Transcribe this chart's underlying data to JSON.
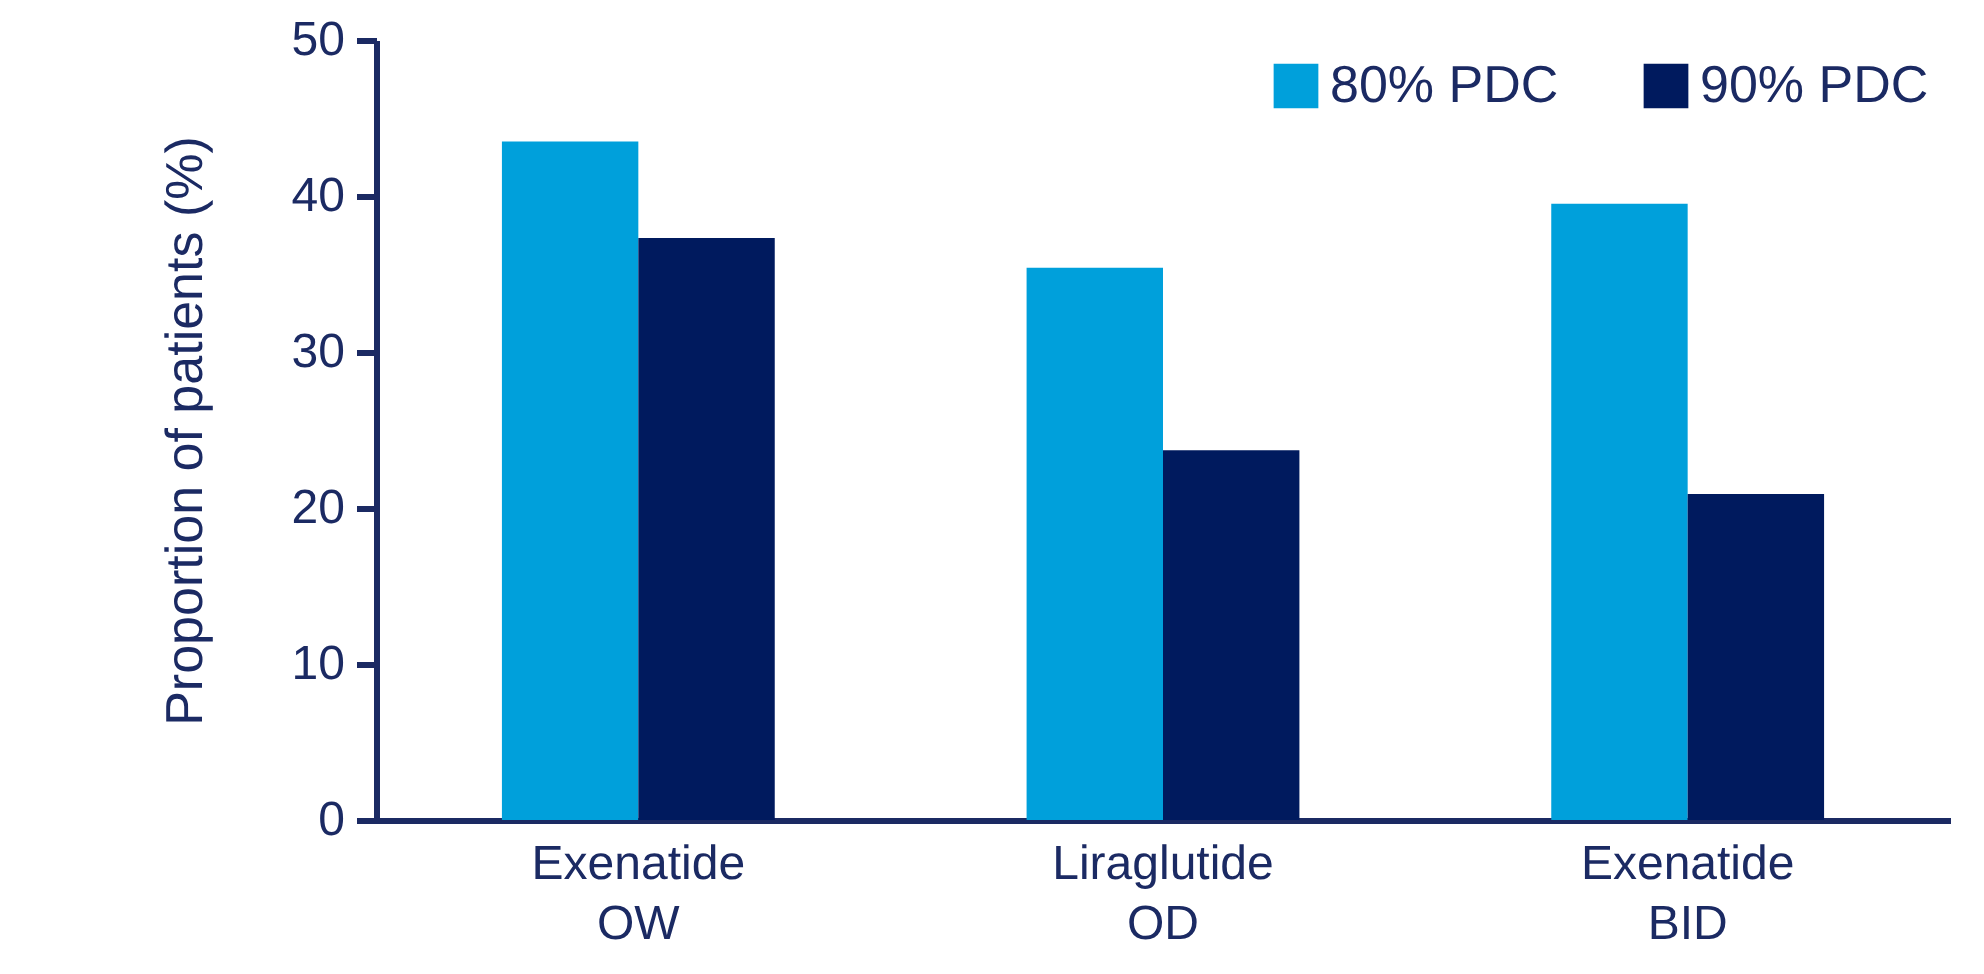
{
  "chart_data": {
    "type": "bar",
    "ylabel": "Proportion of patients (%)",
    "categories": [
      "Exenatide OW",
      "Liraglutide OD",
      "Exenatide BID"
    ],
    "series": [
      {
        "name": "80% PDC",
        "color": "#00a0db",
        "values": [
          43.5,
          35.4,
          39.5
        ]
      },
      {
        "name": "90% PDC",
        "color": "#001a5e",
        "values": [
          37.3,
          23.7,
          20.9
        ]
      }
    ],
    "ylim": [
      0,
      50
    ],
    "yticks": [
      0,
      10,
      20,
      30,
      40,
      50
    ],
    "legend": "top right"
  }
}
